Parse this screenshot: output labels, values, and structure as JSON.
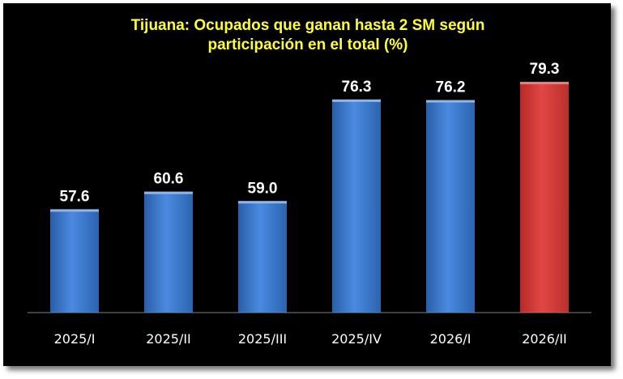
{
  "chart_data": {
    "type": "bar",
    "title_lines": [
      "Tijuana: Ocupados que ganan hasta 2 SM según",
      "participación en el total (%)"
    ],
    "categories": [
      "2025/I",
      "2025/II",
      "2025/III",
      "2025/IV",
      "2026/I",
      "2026/II"
    ],
    "values": [
      57.6,
      60.6,
      59.0,
      76.3,
      76.2,
      79.3
    ],
    "value_labels": [
      "57.6",
      "60.6",
      "59.0",
      "76.3",
      "76.2",
      "79.3"
    ],
    "highlight_index": 5,
    "colors": {
      "bar": "#3a78cc",
      "highlight": "#d63a36",
      "background": "#000000",
      "title": "#ffff33",
      "text": "#ffffff"
    },
    "ylim": [
      40,
      80
    ],
    "grid": false,
    "legend": "none"
  }
}
